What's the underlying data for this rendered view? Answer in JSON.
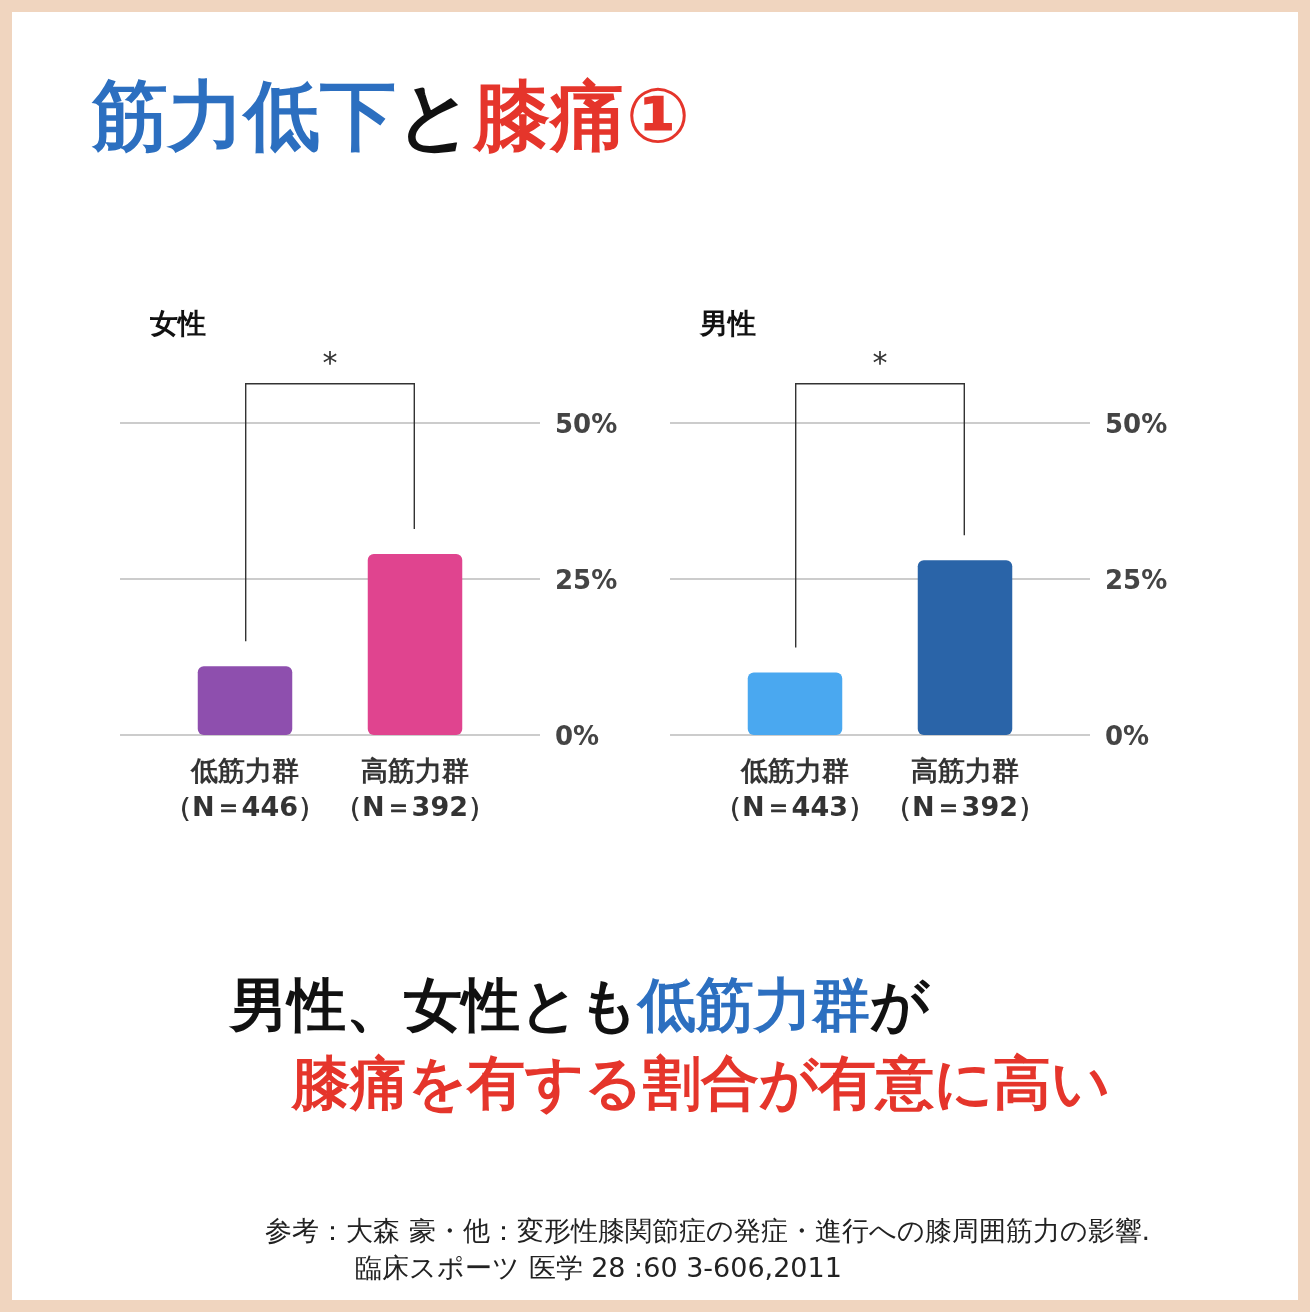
{
  "chart_data": [
    {
      "type": "other",
      "annotations": [
        "筋力低下",
        "と",
        "膝痛①",
        "男性、女性とも",
        "低筋力群",
        "が",
        "膝痛を有する割合が有意に高い",
        "参考：大森 豪・他：変形性膝関節症の発症・進行への膝周囲筋力の影響.",
        "臨床スポーツ 医学 28 :60 3-606,2011"
      ]
    },
    {
      "type": "bar",
      "title": "女性",
      "categories": [
        "低筋力群（N＝446）",
        "高筋力群（N＝392）"
      ],
      "values": [
        11,
        29
      ],
      "colors": [
        "#8e4fae",
        "#e0448f"
      ],
      "ylim": [
        0,
        50
      ],
      "yticks": [
        {
          "value": 0,
          "label": "0%"
        },
        {
          "value": 25,
          "label": "25%"
        },
        {
          "value": 50,
          "label": "50%"
        }
      ],
      "grid": "y",
      "annotations": [
        "*"
      ]
    },
    {
      "type": "bar",
      "title": "男性",
      "categories": [
        "低筋力群（N＝443）",
        "高筋力群（N＝392）"
      ],
      "values": [
        10,
        28
      ],
      "colors": [
        "#4aa8f0",
        "#2a64a8"
      ],
      "ylim": [
        0,
        50
      ],
      "yticks": [
        {
          "value": 0,
          "label": "0%"
        },
        {
          "value": 25,
          "label": "25%"
        },
        {
          "value": 50,
          "label": "50%"
        }
      ],
      "grid": "y",
      "annotations": [
        "*"
      ]
    }
  ]
}
